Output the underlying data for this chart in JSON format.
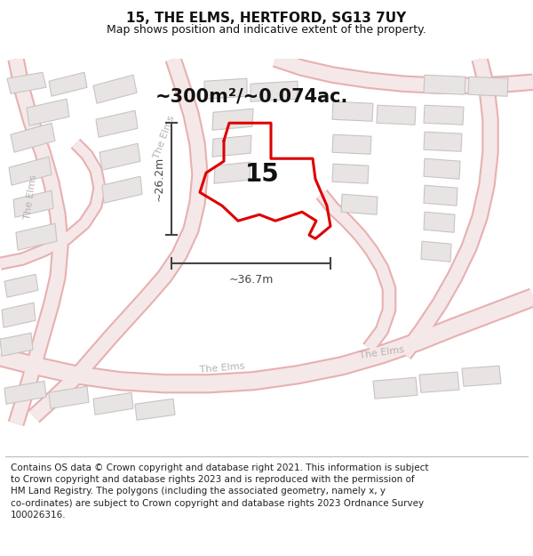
{
  "title": "15, THE ELMS, HERTFORD, SG13 7UY",
  "subtitle": "Map shows position and indicative extent of the property.",
  "footer": "Contains OS data © Crown copyright and database right 2021. This information is subject\nto Crown copyright and database rights 2023 and is reproduced with the permission of\nHM Land Registry. The polygons (including the associated geometry, namely x, y\nco-ordinates) are subject to Crown copyright and database rights 2023 Ordnance Survey\n100026316.",
  "area_label": "~300m²/~0.074ac.",
  "number_label": "15",
  "width_label": "~36.7m",
  "height_label": "~26.2m",
  "map_bg": "#ffffff",
  "road_outline_color": "#e8b0b0",
  "road_fill_color": "#f5e8e8",
  "building_fill": "#e8e4e4",
  "building_edge": "#c8c4c4",
  "plot_color": "#dd0000",
  "dim_color": "#444444",
  "text_color": "#111111",
  "road_label_color": "#b8b0b0",
  "title_fontsize": 11,
  "subtitle_fontsize": 9,
  "footer_fontsize": 7.5,
  "area_fontsize": 15,
  "number_fontsize": 20,
  "dim_fontsize": 9,
  "road_label_fontsize": 8,
  "figsize": [
    6.0,
    6.25
  ],
  "dpi": 100
}
